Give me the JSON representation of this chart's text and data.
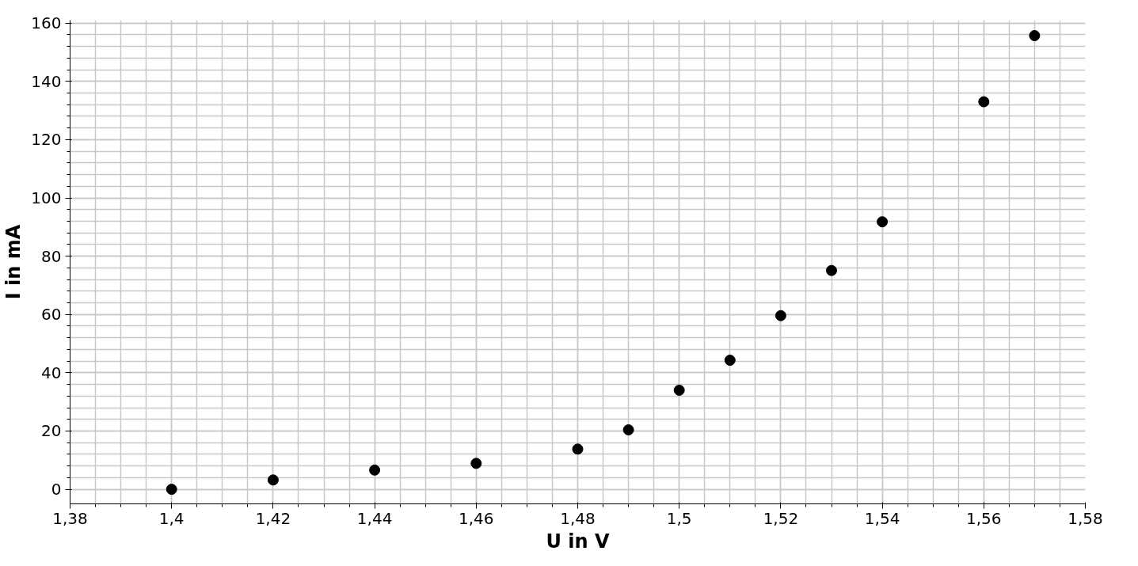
{
  "chart_data": {
    "type": "scatter",
    "xlabel": "U in V",
    "ylabel": "I in mA",
    "x": [
      1.4,
      1.42,
      1.44,
      1.46,
      1.48,
      1.49,
      1.5,
      1.51,
      1.52,
      1.53,
      1.54,
      1.56,
      1.57
    ],
    "series": [
      {
        "color": "#000000",
        "values": [
          0,
          3.2,
          6.6,
          8.9,
          13.8,
          20.4,
          34,
          44.3,
          59.6,
          75.1,
          91.8,
          133,
          155.7
        ]
      }
    ],
    "xlim": [
      1.38,
      1.58
    ],
    "ylim": [
      -5,
      161
    ],
    "xticks": [
      {
        "value": 1.38,
        "label": "1,38"
      },
      {
        "value": 1.4,
        "label": "1,4"
      },
      {
        "value": 1.42,
        "label": "1,42"
      },
      {
        "value": 1.44,
        "label": "1,44"
      },
      {
        "value": 1.46,
        "label": "1,46"
      },
      {
        "value": 1.48,
        "label": "1,48"
      },
      {
        "value": 1.5,
        "label": "1,5"
      },
      {
        "value": 1.52,
        "label": "1,52"
      },
      {
        "value": 1.54,
        "label": "1,54"
      },
      {
        "value": 1.56,
        "label": "1,56"
      },
      {
        "value": 1.58,
        "label": "1,58"
      }
    ],
    "yticks": [
      0,
      20,
      40,
      60,
      80,
      100,
      120,
      140,
      160
    ],
    "grid": true,
    "marker": "circle"
  }
}
